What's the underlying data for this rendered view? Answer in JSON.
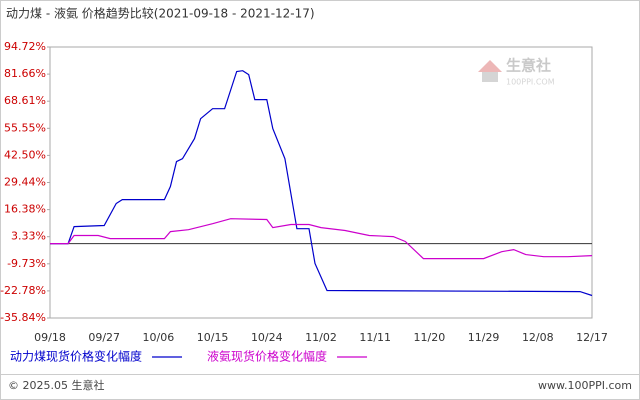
{
  "chart_data": {
    "type": "line",
    "title": "动力煤 - 液氨 价格趋势比较(2021-09-18 - 2021-12-17)",
    "watermark": {
      "name": "生意社",
      "site": "100PPI.COM"
    },
    "ylim": [
      -35.84,
      94.72
    ],
    "yticks": [
      {
        "value": 94.72,
        "label": "94.72%"
      },
      {
        "value": 81.66,
        "label": "81.66%"
      },
      {
        "value": 68.61,
        "label": "68.61%"
      },
      {
        "value": 55.55,
        "label": "55.55%"
      },
      {
        "value": 42.5,
        "label": "42.50%"
      },
      {
        "value": 29.44,
        "label": "29.44%"
      },
      {
        "value": 16.38,
        "label": "16.38%"
      },
      {
        "value": 3.33,
        "label": "3.33%"
      },
      {
        "value": -9.73,
        "label": "-9.73%"
      },
      {
        "value": -22.78,
        "label": "-22.78%"
      },
      {
        "value": -35.84,
        "label": "-35.84%"
      }
    ],
    "xticks": [
      "09/18",
      "09/27",
      "10/06",
      "10/15",
      "10/24",
      "11/02",
      "11/11",
      "11/20",
      "11/29",
      "12/08",
      "12/17"
    ],
    "series": [
      {
        "name": "动力煤现货价格变化幅度",
        "color": "#0000cc",
        "x": [
          "09/18",
          "09/21",
          "09/22",
          "09/27",
          "09/29",
          "09/30",
          "10/07",
          "10/08",
          "10/09",
          "10/10",
          "10/12",
          "10/13",
          "10/15",
          "10/17",
          "10/19",
          "10/20",
          "10/21",
          "10/22",
          "10/24",
          "10/25",
          "10/27",
          "10/29",
          "10/31",
          "11/01",
          "11/03",
          "12/15",
          "12/17"
        ],
        "values": [
          0,
          0,
          8.2,
          8.7,
          19.3,
          21.2,
          21.2,
          27.5,
          39.5,
          40.9,
          50.6,
          60.2,
          65.0,
          65.0,
          82.9,
          83.3,
          81.4,
          69.4,
          69.4,
          55.4,
          40.9,
          7.2,
          7.2,
          -9.6,
          -22.6,
          -23.1,
          -25.0
        ]
      },
      {
        "name": "液氨现货价格变化幅度",
        "color": "#cc00cc",
        "x": [
          "09/18",
          "09/21",
          "09/22",
          "09/26",
          "09/28",
          "10/07",
          "10/08",
          "10/11",
          "10/15",
          "10/18",
          "10/24",
          "10/25",
          "10/28",
          "10/31",
          "11/02",
          "11/06",
          "11/10",
          "11/14",
          "11/16",
          "11/19",
          "11/29",
          "12/02",
          "12/04",
          "12/06",
          "12/09",
          "12/13",
          "12/17"
        ],
        "values": [
          0,
          0,
          3.9,
          3.9,
          2.4,
          2.4,
          5.8,
          6.7,
          9.6,
          12.0,
          11.6,
          7.7,
          9.2,
          9.2,
          7.7,
          6.3,
          3.9,
          3.4,
          1.0,
          -7.2,
          -7.2,
          -3.9,
          -2.9,
          -5.3,
          -6.3,
          -6.3,
          -5.8
        ]
      }
    ],
    "footer": {
      "left": "© 2025.05 生意社",
      "right": "www.100PPI.com"
    }
  }
}
